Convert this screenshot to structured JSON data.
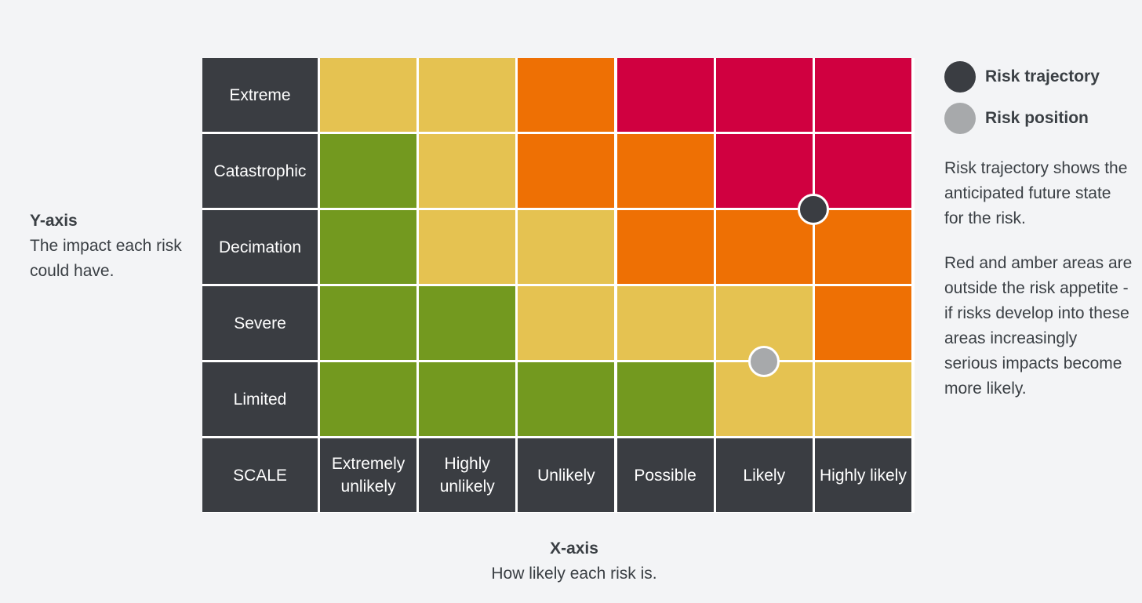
{
  "chart_data": {
    "type": "heatmap",
    "title": "",
    "xlabel": "X-axis",
    "xlabel_desc": "How likely each risk is.",
    "ylabel": "Y-axis",
    "ylabel_desc": "The impact each risk could have.",
    "corner_label": "SCALE",
    "x_categories": [
      "Extremely unlikely",
      "Highly unlikely",
      "Unlikely",
      "Possible",
      "Likely",
      "Highly likely"
    ],
    "y_categories": [
      "Extreme",
      "Catastrophic",
      "Decimation",
      "Severe",
      "Limited"
    ],
    "cell_levels": [
      [
        "amber",
        "amber",
        "orange",
        "red",
        "red",
        "red"
      ],
      [
        "green",
        "amber",
        "orange",
        "orange",
        "red",
        "red"
      ],
      [
        "green",
        "amber",
        "amber",
        "orange",
        "orange",
        "orange"
      ],
      [
        "green",
        "green",
        "amber",
        "amber",
        "amber",
        "orange"
      ],
      [
        "green",
        "green",
        "green",
        "green",
        "amber",
        "amber"
      ]
    ],
    "level_colors": {
      "green": "#73991f",
      "amber": "#e5c251",
      "orange": "#ee7004",
      "red": "#d00040"
    },
    "markers": [
      {
        "name": "Risk trajectory",
        "x": 5.0,
        "y": 2.0,
        "color": "#3a3d42"
      },
      {
        "name": "Risk position",
        "x": 4.5,
        "y": 4.0,
        "color": "#a7a9ab"
      }
    ],
    "legend_position": "right",
    "grid": true
  },
  "notes": {
    "trajectory": "Risk trajectory shows the anticipated future state for the risk.",
    "appetite": "Red and amber areas are outside the risk appetite - if risks develop into these areas increasingly serious impacts become more likely."
  }
}
